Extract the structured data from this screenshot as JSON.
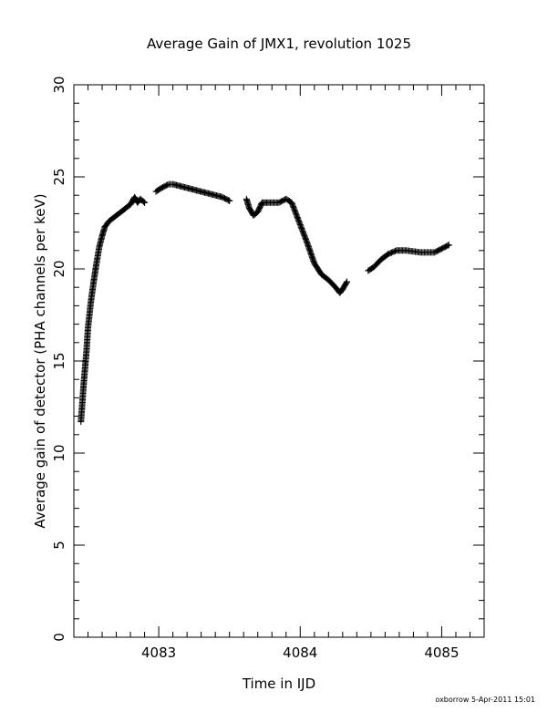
{
  "chart_data": {
    "type": "scatter",
    "marker": "plus",
    "title": "Average Gain of JMX1, revolution 1025",
    "xlabel": "Time in IJD",
    "ylabel": "Average gain of detector (PHA channels per keV)",
    "xlim": [
      4082.4,
      4085.3
    ],
    "ylim": [
      0,
      30
    ],
    "xticks": [
      {
        "value": 4083,
        "label": "4083"
      },
      {
        "value": 4084,
        "label": "4084"
      },
      {
        "value": 4085,
        "label": "4085"
      }
    ],
    "x_minor_step": 0.1,
    "yticks": [
      {
        "value": 0,
        "label": "0"
      },
      {
        "value": 5,
        "label": "5"
      },
      {
        "value": 10,
        "label": "10"
      },
      {
        "value": 15,
        "label": "15"
      },
      {
        "value": 20,
        "label": "20"
      },
      {
        "value": 25,
        "label": "25"
      },
      {
        "value": 30,
        "label": "30"
      }
    ],
    "y_minor_step": 1,
    "grid": false,
    "legend": "none",
    "colors": {
      "marker": "#000000",
      "axes": "#000000",
      "background": "#ffffff"
    },
    "segments": [
      {
        "x": [
          4082.45,
          4082.47,
          4082.49,
          4082.5,
          4082.52,
          4082.54,
          4082.56,
          4082.58,
          4082.6,
          4082.62,
          4082.65,
          4082.7,
          4082.75,
          4082.8,
          4082.83,
          4082.85,
          4082.87,
          4082.9
        ],
        "y": [
          11.7,
          13.8,
          15.6,
          16.8,
          18.2,
          19.3,
          20.3,
          21.2,
          21.8,
          22.3,
          22.6,
          22.9,
          23.2,
          23.5,
          23.9,
          23.6,
          23.8,
          23.6
        ]
      },
      {
        "x": [
          4082.98,
          4083.02,
          4083.07,
          4083.1,
          4083.15,
          4083.2,
          4083.25,
          4083.3,
          4083.35,
          4083.4,
          4083.45,
          4083.5
        ],
        "y": [
          24.2,
          24.4,
          24.6,
          24.6,
          24.5,
          24.4,
          24.3,
          24.2,
          24.1,
          24.0,
          23.9,
          23.7
        ]
      },
      {
        "x": [
          4083.62,
          4083.64,
          4083.67,
          4083.7,
          4083.73,
          4083.78,
          4083.85,
          4083.9,
          4083.94,
          4083.97,
          4084.0,
          4084.05,
          4084.1,
          4084.15,
          4084.2,
          4084.25,
          4084.28,
          4084.3,
          4084.33
        ],
        "y": [
          23.8,
          23.3,
          22.9,
          23.1,
          23.6,
          23.6,
          23.6,
          23.8,
          23.6,
          23.0,
          22.4,
          21.4,
          20.3,
          19.7,
          19.4,
          19.0,
          18.7,
          18.9,
          19.3
        ]
      },
      {
        "x": [
          4084.48,
          4084.52,
          4084.57,
          4084.62,
          4084.68,
          4084.75,
          4084.85,
          4084.95,
          4085.0,
          4085.05
        ],
        "y": [
          19.9,
          20.1,
          20.5,
          20.8,
          21.0,
          21.0,
          20.9,
          20.9,
          21.1,
          21.3
        ]
      }
    ]
  },
  "footer": {
    "text": "oxborrow  5-Apr-2011 15:01"
  }
}
